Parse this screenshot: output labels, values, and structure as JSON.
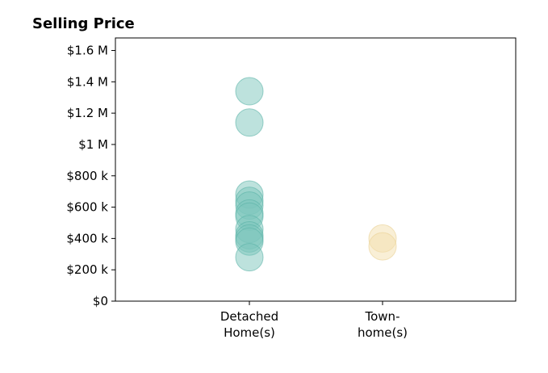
{
  "chart_data": {
    "type": "scatter",
    "title": "Selling Price",
    "xlabel": "",
    "ylabel": "",
    "ylim": [
      0,
      1680000
    ],
    "y_ticks": [
      {
        "value": 0,
        "label": "$0"
      },
      {
        "value": 200000,
        "label": "$200 k"
      },
      {
        "value": 400000,
        "label": "$400 k"
      },
      {
        "value": 600000,
        "label": "$600 k"
      },
      {
        "value": 800000,
        "label": "$800 k"
      },
      {
        "value": 1000000,
        "label": "$1 M"
      },
      {
        "value": 1200000,
        "label": "$1.2 M"
      },
      {
        "value": 1400000,
        "label": "$1.4 M"
      },
      {
        "value": 1600000,
        "label": "$1.6 M"
      }
    ],
    "categories": [
      {
        "lines": [
          "Detached",
          "Home(s)"
        ]
      },
      {
        "lines": [
          "Town-",
          "home(s)"
        ]
      }
    ],
    "grid": false,
    "series": [
      {
        "category_index": 0,
        "color": "#7cc6bb",
        "stroke": "#5ab3a6",
        "values": [
          1340000,
          1140000,
          680000,
          640000,
          610000,
          560000,
          540000,
          460000,
          420000,
          400000,
          380000,
          280000
        ]
      },
      {
        "category_index": 1,
        "color": "#f3dfae",
        "stroke": "#ead193",
        "values": [
          400000,
          350000
        ]
      }
    ]
  }
}
